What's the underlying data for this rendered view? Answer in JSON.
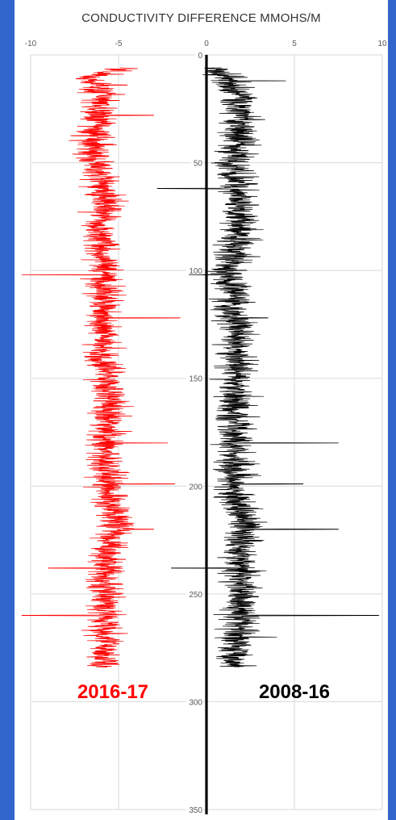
{
  "colors": {
    "frame": "#3366cc",
    "series_2016_17": "#ff0000",
    "series_2008_16": "#000000",
    "grid": "#d9d9d9"
  },
  "chart_data": {
    "type": "line",
    "title": "CONDUCTIVITY DIFFERENCE MMOHS/M",
    "xlabel": "",
    "ylabel": "",
    "xlim": [
      -10,
      10
    ],
    "ylim": [
      350,
      0
    ],
    "x_ticks": [
      "-10",
      "-5",
      "0",
      "5",
      "10"
    ],
    "y_ticks": [
      "0",
      "50",
      "100",
      "150",
      "200",
      "250",
      "300",
      "350"
    ],
    "grid": true,
    "y_inverted": true,
    "annotations": [
      "2016-17",
      "2008-16"
    ],
    "series": [
      {
        "name": "2016-17",
        "color": "#ff0000",
        "y": [
          6,
          10,
          20,
          30,
          40,
          50,
          60,
          70,
          80,
          90,
          100,
          110,
          120,
          130,
          140,
          150,
          160,
          170,
          180,
          190,
          200,
          210,
          220,
          230,
          240,
          250,
          260,
          270,
          280,
          284
        ],
        "x": [
          -4.5,
          -6.5,
          -6.0,
          -6.2,
          -6.5,
          -6.3,
          -6.0,
          -5.8,
          -6.0,
          -6.0,
          -5.8,
          -5.8,
          -5.9,
          -5.8,
          -5.9,
          -5.7,
          -5.5,
          -5.6,
          -5.8,
          -5.8,
          -5.7,
          -5.4,
          -5.0,
          -5.7,
          -5.8,
          -5.7,
          -5.8,
          -5.7,
          -5.8,
          -5.8
        ]
      },
      {
        "name": "2008-16",
        "color": "#000000",
        "y": [
          6,
          10,
          20,
          30,
          40,
          50,
          60,
          70,
          80,
          90,
          100,
          110,
          120,
          130,
          140,
          150,
          160,
          170,
          180,
          190,
          200,
          210,
          220,
          230,
          240,
          250,
          260,
          270,
          280,
          284
        ],
        "x": [
          0.0,
          1.2,
          1.8,
          2.0,
          1.8,
          1.5,
          1.8,
          1.8,
          1.8,
          1.7,
          1.2,
          1.5,
          1.6,
          1.7,
          1.7,
          1.7,
          1.7,
          1.6,
          1.7,
          1.6,
          1.6,
          1.8,
          2.2,
          1.8,
          2.0,
          2.0,
          1.8,
          1.8,
          1.5,
          1.5
        ]
      }
    ]
  }
}
